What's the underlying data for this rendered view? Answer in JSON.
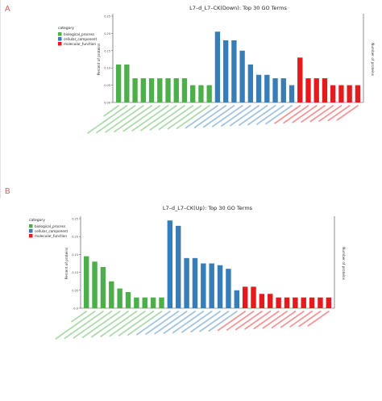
{
  "panels": {
    "a": "A",
    "b": "B"
  },
  "legend": {
    "title": "category",
    "items": [
      {
        "label": "biological_process",
        "color": "#4daf4a"
      },
      {
        "label": "cellular_component",
        "color": "#377eb8"
      },
      {
        "label": "molecular_function",
        "color": "#e41a1c"
      }
    ]
  },
  "chart_data": [
    {
      "type": "bar",
      "title": "L7–d_L7–CK(Down): Top 30 GO Terms",
      "ylabel": "Percent of proteins",
      "y2label": "Number of proteins",
      "ylim": [
        0,
        0.25
      ],
      "yticks": [
        "0.00",
        "0.05",
        "0.10",
        "0.15",
        "0.20",
        "0.25"
      ],
      "legend_position": "top-left",
      "grid": false,
      "series": [
        {
          "name": "biological_process",
          "color": "#4daf4a",
          "values": [
            0.11,
            0.11,
            0.07,
            0.07,
            0.07,
            0.07,
            0.07,
            0.07,
            0.07,
            0.05,
            0.05,
            0.05
          ]
        },
        {
          "name": "cellular_component",
          "color": "#377eb8",
          "values": [
            0.205,
            0.18,
            0.18,
            0.15,
            0.11,
            0.08,
            0.08,
            0.07,
            0.07,
            0.05
          ]
        },
        {
          "name": "molecular_function",
          "color": "#e41a1c",
          "values": [
            0.13,
            0.07,
            0.07,
            0.07,
            0.05,
            0.05,
            0.05,
            0.05
          ]
        }
      ]
    },
    {
      "type": "bar",
      "title": "L7–d_L7–CK(Up): Top 30 GO Terms",
      "ylabel": "Percent of proteins",
      "y2label": "Number of proteins",
      "ylim": [
        0,
        0.25
      ],
      "yticks": [
        "0.0",
        "0.05",
        "0.10",
        "0.15",
        "0.20",
        "0.25"
      ],
      "legend_position": "top-left",
      "grid": false,
      "series": [
        {
          "name": "biological_process",
          "color": "#4daf4a",
          "values": [
            0.145,
            0.13,
            0.115,
            0.075,
            0.055,
            0.045,
            0.03,
            0.03,
            0.03,
            0.03
          ]
        },
        {
          "name": "cellular_component",
          "color": "#377eb8",
          "values": [
            0.245,
            0.23,
            0.14,
            0.14,
            0.125,
            0.125,
            0.12,
            0.11,
            0.05
          ]
        },
        {
          "name": "molecular_function",
          "color": "#e41a1c",
          "values": [
            0.06,
            0.06,
            0.04,
            0.04,
            0.03,
            0.03,
            0.03,
            0.03,
            0.03,
            0.03,
            0.03
          ]
        }
      ]
    }
  ]
}
